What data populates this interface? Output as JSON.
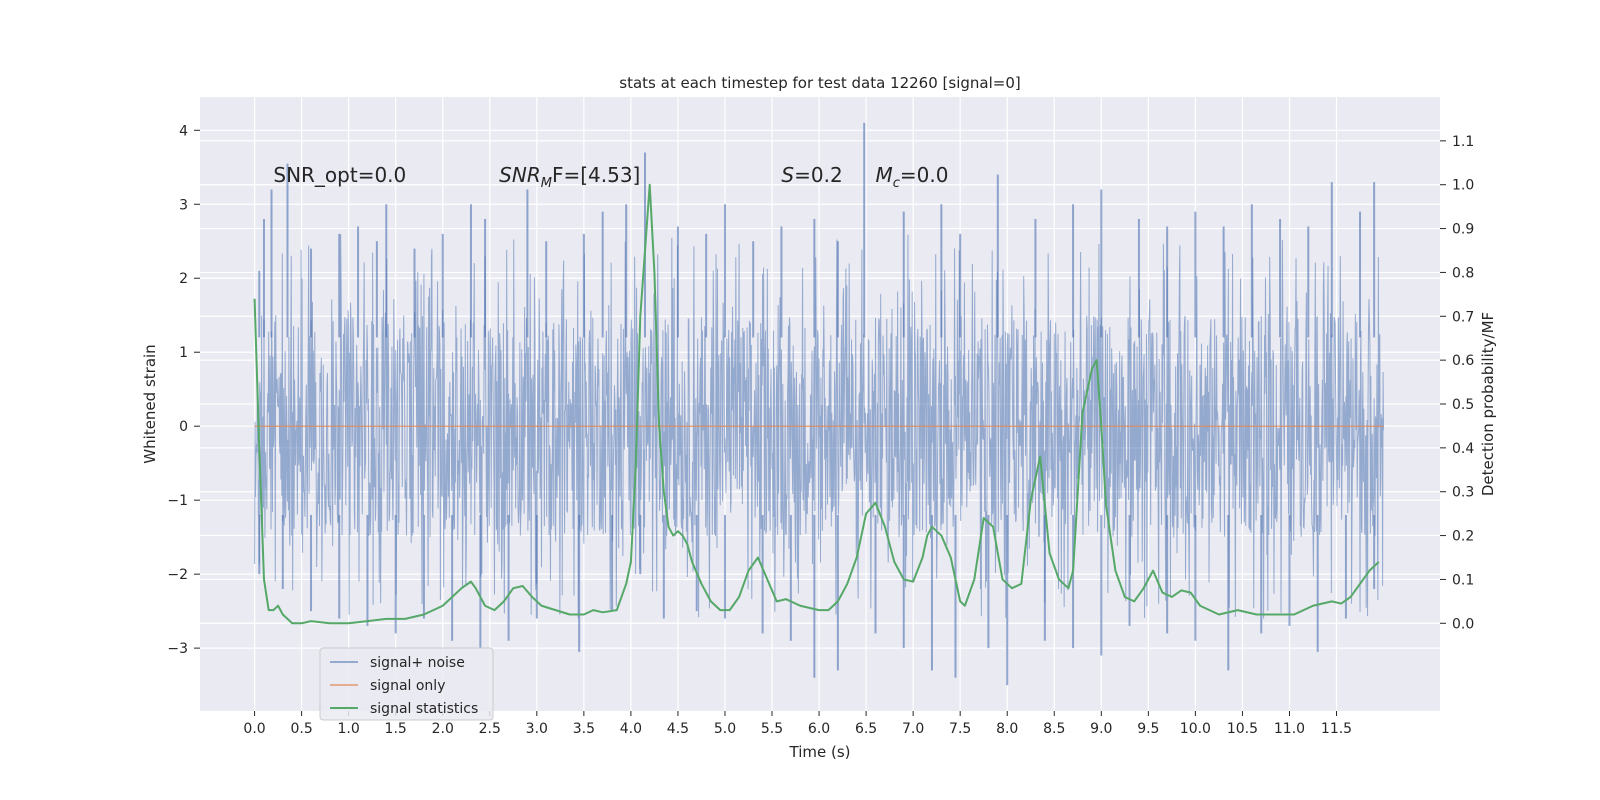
{
  "chart_data": {
    "type": "line",
    "title": "stats at each timestep for test data 12260 [signal=0]",
    "xlabel": "Time (s)",
    "ylabel_left": "Whitened strain",
    "ylabel_right": "Detection probability/MF",
    "xlim": [
      -0.58,
      12.6
    ],
    "ylim_left": [
      -3.85,
      4.45
    ],
    "ylim_right": [
      -0.2,
      1.2
    ],
    "x_ticks": [
      0.0,
      0.5,
      1.0,
      1.5,
      2.0,
      2.5,
      3.0,
      3.5,
      4.0,
      4.5,
      5.0,
      5.5,
      6.0,
      6.5,
      7.0,
      7.5,
      8.0,
      8.5,
      9.0,
      9.5,
      10.0,
      10.5,
      11.0,
      11.5
    ],
    "x_tick_labels": [
      "0.0",
      "0.5",
      "1.0",
      "1.5",
      "2.0",
      "2.5",
      "3.0",
      "3.5",
      "4.0",
      "4.5",
      "5.0",
      "5.5",
      "6.0",
      "6.5",
      "7.0",
      "7.5",
      "8.0",
      "8.5",
      "9.0",
      "9.5",
      "10.0",
      "10.5",
      "11.0",
      "11.5"
    ],
    "y_left_ticks": [
      -3,
      -2,
      -1,
      0,
      1,
      2,
      3,
      4
    ],
    "y_left_tick_labels": [
      "−3",
      "−2",
      "−1",
      "0",
      "1",
      "2",
      "3",
      "4"
    ],
    "y_right_ticks": [
      0.0,
      0.1,
      0.2,
      0.3,
      0.4,
      0.5,
      0.6,
      0.7,
      0.8,
      0.9,
      1.0,
      1.1
    ],
    "y_right_tick_labels": [
      "0.0",
      "0.1",
      "0.2",
      "0.3",
      "0.4",
      "0.5",
      "0.6",
      "0.7",
      "0.8",
      "0.9",
      "1.0",
      "1.1"
    ],
    "grid": true,
    "legend_position": "lower-left",
    "noise_envelope": {
      "x_start": 0.0,
      "x_end": 12.0,
      "dense_band": [
        -1.5,
        1.5
      ],
      "upper_spikes": [
        [
          0.05,
          2.1
        ],
        [
          0.1,
          2.8
        ],
        [
          0.18,
          3.2
        ],
        [
          0.35,
          3.55
        ],
        [
          0.6,
          2.4
        ],
        [
          0.9,
          2.6
        ],
        [
          1.1,
          2.7
        ],
        [
          1.3,
          2.5
        ],
        [
          1.4,
          3.0
        ],
        [
          1.7,
          2.4
        ],
        [
          2.0,
          2.6
        ],
        [
          2.3,
          3.0
        ],
        [
          2.45,
          2.8
        ],
        [
          2.9,
          3.2
        ],
        [
          3.1,
          2.5
        ],
        [
          3.5,
          2.6
        ],
        [
          3.7,
          2.9
        ],
        [
          3.95,
          3.0
        ],
        [
          4.15,
          3.7
        ],
        [
          4.5,
          2.7
        ],
        [
          4.8,
          2.6
        ],
        [
          5.0,
          3.0
        ],
        [
          5.3,
          2.5
        ],
        [
          5.6,
          2.7
        ],
        [
          5.95,
          2.8
        ],
        [
          6.2,
          2.5
        ],
        [
          6.48,
          4.1
        ],
        [
          6.9,
          2.9
        ],
        [
          7.3,
          3.0
        ],
        [
          7.5,
          2.6
        ],
        [
          7.9,
          3.4
        ],
        [
          8.3,
          2.8
        ],
        [
          8.7,
          3.0
        ],
        [
          9.0,
          3.2
        ],
        [
          9.4,
          2.8
        ],
        [
          9.7,
          2.7
        ],
        [
          10.0,
          2.9
        ],
        [
          10.3,
          2.7
        ],
        [
          10.6,
          3.0
        ],
        [
          10.9,
          2.8
        ],
        [
          11.2,
          2.7
        ],
        [
          11.45,
          3.3
        ],
        [
          11.75,
          2.9
        ],
        [
          11.9,
          3.3
        ]
      ],
      "lower_spikes": [
        [
          0.05,
          -2.0
        ],
        [
          0.3,
          -2.2
        ],
        [
          0.6,
          -2.5
        ],
        [
          0.9,
          -2.6
        ],
        [
          1.2,
          -2.7
        ],
        [
          1.5,
          -2.8
        ],
        [
          1.8,
          -2.6
        ],
        [
          2.1,
          -2.9
        ],
        [
          2.4,
          -3.0
        ],
        [
          2.7,
          -2.9
        ],
        [
          3.0,
          -2.6
        ],
        [
          3.45,
          -3.05
        ],
        [
          3.8,
          -2.5
        ],
        [
          4.1,
          -2.0
        ],
        [
          4.35,
          -2.6
        ],
        [
          4.7,
          -2.5
        ],
        [
          5.0,
          -2.6
        ],
        [
          5.4,
          -2.8
        ],
        [
          5.7,
          -2.9
        ],
        [
          5.95,
          -3.4
        ],
        [
          6.2,
          -3.3
        ],
        [
          6.6,
          -2.8
        ],
        [
          6.9,
          -3.0
        ],
        [
          7.2,
          -3.3
        ],
        [
          7.45,
          -3.4
        ],
        [
          7.8,
          -3.0
        ],
        [
          8.0,
          -3.5
        ],
        [
          8.4,
          -2.9
        ],
        [
          8.7,
          -3.0
        ],
        [
          9.0,
          -3.1
        ],
        [
          9.3,
          -2.7
        ],
        [
          9.7,
          -2.8
        ],
        [
          10.0,
          -2.9
        ],
        [
          10.35,
          -3.3
        ],
        [
          10.7,
          -2.8
        ],
        [
          11.0,
          -2.7
        ],
        [
          11.3,
          -3.05
        ],
        [
          11.6,
          -2.6
        ],
        [
          11.9,
          -2.2
        ]
      ]
    },
    "series": [
      {
        "name": "signal+ noise",
        "color": "#4c72b0",
        "axis": "left",
        "kind": "noise"
      },
      {
        "name": "signal only",
        "color": "#dd8452",
        "axis": "left",
        "x": [
          0.0,
          12.0
        ],
        "y": [
          0.0,
          0.0
        ]
      },
      {
        "name": "signal statistics",
        "color": "#55a868",
        "axis": "right",
        "x": [
          0.0,
          0.05,
          0.1,
          0.15,
          0.2,
          0.25,
          0.3,
          0.35,
          0.4,
          0.5,
          0.6,
          0.8,
          1.0,
          1.2,
          1.4,
          1.6,
          1.8,
          2.0,
          2.1,
          2.2,
          2.3,
          2.35,
          2.45,
          2.55,
          2.65,
          2.75,
          2.85,
          2.95,
          3.05,
          3.2,
          3.35,
          3.5,
          3.6,
          3.7,
          3.85,
          3.95,
          4.0,
          4.05,
          4.1,
          4.15,
          4.2,
          4.25,
          4.3,
          4.35,
          4.4,
          4.45,
          4.5,
          4.55,
          4.6,
          4.65,
          4.75,
          4.85,
          4.95,
          5.05,
          5.15,
          5.25,
          5.35,
          5.45,
          5.55,
          5.65,
          5.8,
          6.0,
          6.1,
          6.2,
          6.3,
          6.4,
          6.5,
          6.6,
          6.7,
          6.8,
          6.9,
          7.0,
          7.1,
          7.15,
          7.2,
          7.3,
          7.4,
          7.5,
          7.55,
          7.65,
          7.75,
          7.85,
          7.95,
          8.05,
          8.15,
          8.25,
          8.35,
          8.45,
          8.55,
          8.65,
          8.7,
          8.8,
          8.9,
          8.95,
          9.0,
          9.05,
          9.15,
          9.25,
          9.35,
          9.45,
          9.55,
          9.65,
          9.75,
          9.85,
          9.95,
          10.05,
          10.25,
          10.45,
          10.65,
          10.85,
          11.05,
          11.25,
          11.45,
          11.55,
          11.65,
          11.75,
          11.85,
          11.95
        ],
        "y": [
          0.74,
          0.4,
          0.1,
          0.03,
          0.03,
          0.04,
          0.02,
          0.01,
          0.0,
          0.0,
          0.005,
          0.0,
          0.0,
          0.005,
          0.01,
          0.01,
          0.02,
          0.04,
          0.06,
          0.08,
          0.095,
          0.08,
          0.04,
          0.03,
          0.05,
          0.08,
          0.085,
          0.06,
          0.04,
          0.03,
          0.02,
          0.02,
          0.03,
          0.025,
          0.03,
          0.09,
          0.14,
          0.35,
          0.7,
          0.85,
          1.0,
          0.8,
          0.45,
          0.3,
          0.22,
          0.2,
          0.21,
          0.2,
          0.18,
          0.14,
          0.09,
          0.05,
          0.03,
          0.03,
          0.06,
          0.12,
          0.15,
          0.1,
          0.05,
          0.055,
          0.04,
          0.03,
          0.03,
          0.05,
          0.09,
          0.15,
          0.25,
          0.275,
          0.22,
          0.14,
          0.1,
          0.095,
          0.15,
          0.2,
          0.22,
          0.2,
          0.15,
          0.05,
          0.04,
          0.1,
          0.24,
          0.22,
          0.1,
          0.08,
          0.09,
          0.28,
          0.38,
          0.16,
          0.1,
          0.08,
          0.12,
          0.48,
          0.58,
          0.6,
          0.45,
          0.27,
          0.12,
          0.06,
          0.05,
          0.08,
          0.12,
          0.07,
          0.06,
          0.075,
          0.07,
          0.04,
          0.02,
          0.03,
          0.02,
          0.02,
          0.02,
          0.04,
          0.05,
          0.045,
          0.06,
          0.09,
          0.12,
          0.14
        ]
      }
    ],
    "annotations": [
      {
        "text": "SNR_opt=0.0",
        "x": 0.2,
        "y": 3.3,
        "axis": "left"
      },
      {
        "base": "SNR",
        "sub": "M",
        "rest": "F=[4.53]",
        "x": 2.6,
        "y": 3.3,
        "axis": "left",
        "italic_base": true
      },
      {
        "base": "S",
        "sub": "",
        "rest": "=0.2",
        "x": 5.6,
        "y": 3.3,
        "axis": "left",
        "italic_base": true
      },
      {
        "base": "M",
        "sub": "c",
        "rest": "=0.0",
        "x": 6.6,
        "y": 3.3,
        "axis": "left",
        "italic_base": true
      }
    ]
  }
}
